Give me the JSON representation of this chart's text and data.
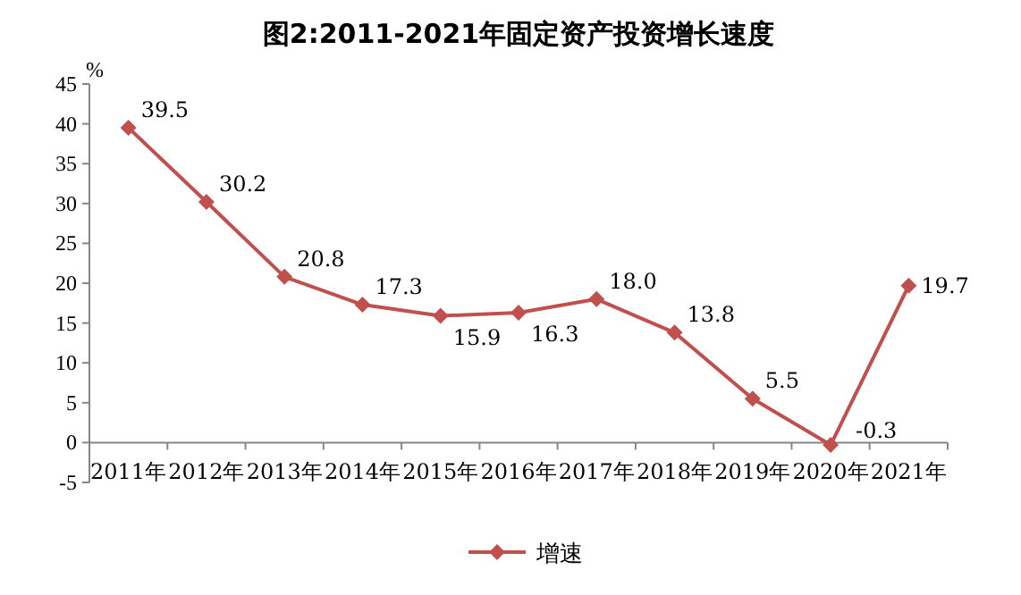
{
  "chart_data": {
    "type": "line",
    "title": "图2:2011-2021年固定资产投资增长速度",
    "ylabel": "%",
    "categories": [
      "2011年",
      "2012年",
      "2013年",
      "2014年",
      "2015年",
      "2016年",
      "2017年",
      "2018年",
      "2019年",
      "2020年",
      "2021年"
    ],
    "series": [
      {
        "name": "增速",
        "color": "#c0504d",
        "values": [
          39.5,
          30.2,
          20.8,
          17.3,
          15.9,
          16.3,
          18.0,
          13.8,
          5.5,
          -0.3,
          19.7
        ],
        "value_labels": [
          "39.5",
          "30.2",
          "20.8",
          "17.3",
          "15.9",
          "16.3",
          "18.0",
          "13.8",
          "5.5",
          "-0.3",
          "19.7"
        ]
      }
    ],
    "ylim": [
      -5,
      45
    ],
    "yticks": [
      -5,
      0,
      5,
      10,
      15,
      20,
      25,
      30,
      35,
      40,
      45
    ],
    "marker": "diamond",
    "line_style": "solid",
    "data_labels": true,
    "legend": "bottom",
    "grid": false
  }
}
